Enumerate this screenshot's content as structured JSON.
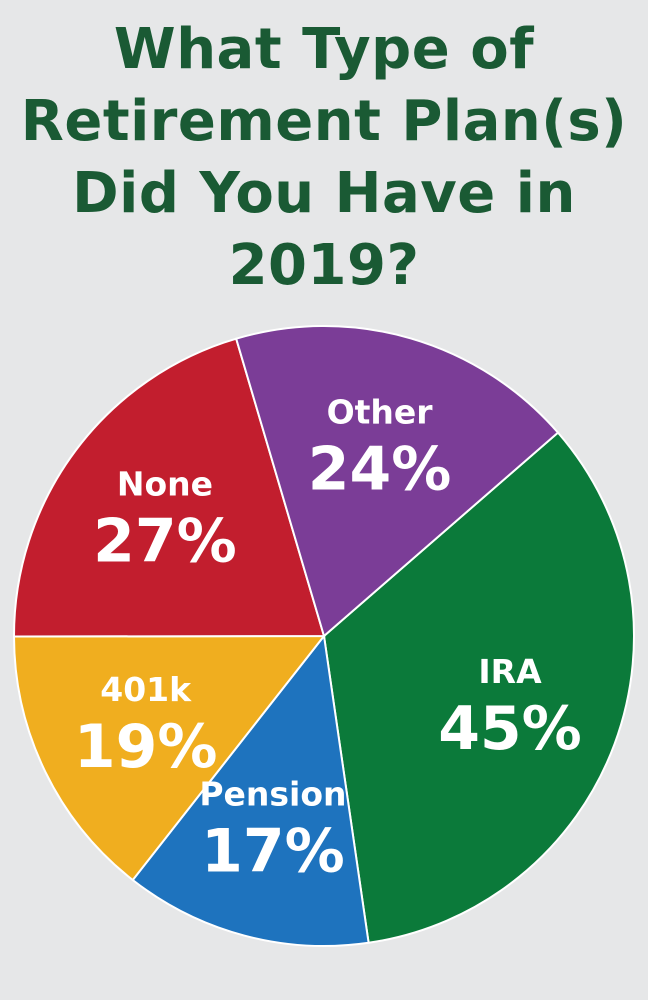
{
  "title_lines": [
    "What Type of",
    "Retirement Plan(s)",
    "Did You Have in",
    "2019?"
  ],
  "chart_data": {
    "type": "pie",
    "title": "What Type of Retirement Plan(s) Did You Have in 2019?",
    "slices": [
      {
        "label": "IRA",
        "value": 45,
        "display": "45%",
        "color": "#0b7a3a"
      },
      {
        "label": "Pension",
        "value": 17,
        "display": "17%",
        "color": "#1e73be"
      },
      {
        "label": "401k",
        "value": 19,
        "display": "19%",
        "color": "#f0ae1f"
      },
      {
        "label": "None",
        "value": 27,
        "display": "27%",
        "color": "#c21e2e"
      },
      {
        "label": "Other",
        "value": 24,
        "display": "24%",
        "color": "#7b3d97"
      }
    ],
    "legend": "none"
  }
}
